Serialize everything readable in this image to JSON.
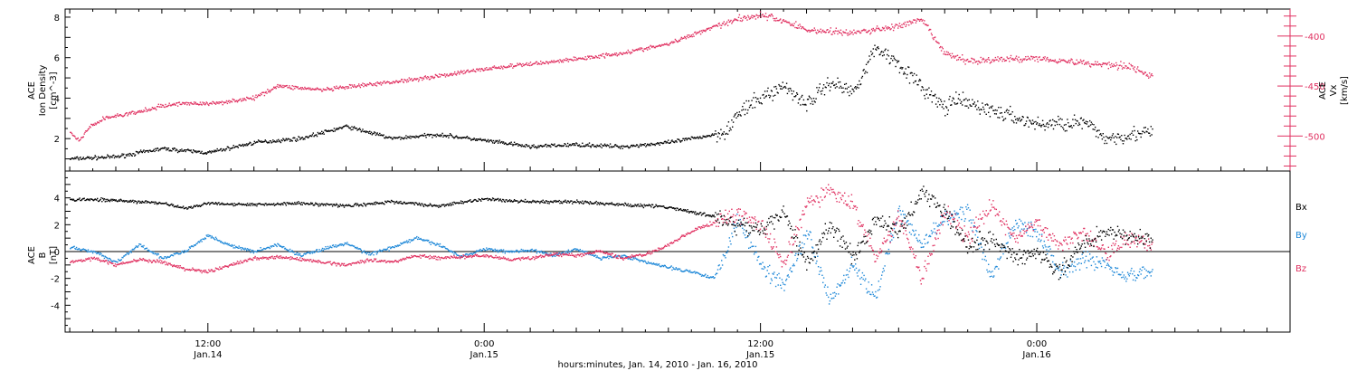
{
  "figure": {
    "xlabel": "hours:minutes, Jan. 14, 2010 - Jan. 16, 2010",
    "time_ticks": [
      {
        "time": "2010-01-14 12:00",
        "hour": 12,
        "l1": "12:00",
        "l2": "Jan.14"
      },
      {
        "time": "2010-01-15 00:00",
        "hour": 24,
        "l1": "0:00",
        "l2": "Jan.15"
      },
      {
        "time": "2010-01-15 12:00",
        "hour": 36,
        "l1": "12:00",
        "l2": "Jan.15"
      },
      {
        "time": "2010-01-16 00:00",
        "hour": 48,
        "l1": "0:00",
        "l2": "Jan.16"
      }
    ],
    "x_range_hours": [
      5.8,
      59.0
    ],
    "data_end_hour": 53.0
  },
  "chart_data": [
    {
      "type": "scatter",
      "panel": "top",
      "ylabel_lines": [
        "ACE",
        "Ion Density"
      ],
      "yunit": "[cm^-3]",
      "y2label_lines": [
        "ACE",
        "Vx"
      ],
      "y2unit": "[km/s]",
      "ylim": [
        0.4,
        8.4
      ],
      "yticks": [
        2,
        4,
        6,
        8
      ],
      "y2lim": [
        -535,
        -373
      ],
      "y2ticks": [
        -400,
        -450,
        -500
      ],
      "grid": false,
      "series": [
        {
          "axis": "left",
          "color": "#000000",
          "x": [
            6.0,
            8,
            10,
            12,
            14,
            16,
            18,
            20,
            22,
            24,
            26,
            28,
            30,
            32,
            34,
            34.5,
            35,
            36,
            37,
            38,
            39,
            40,
            41,
            42,
            43,
            44,
            44.5,
            46,
            48,
            50,
            51,
            52,
            53
          ],
          "y": [
            1.0,
            1.1,
            1.5,
            1.3,
            1.8,
            2.0,
            2.6,
            2.0,
            2.2,
            1.9,
            1.6,
            1.7,
            1.6,
            1.8,
            2.2,
            2.4,
            3.2,
            4.0,
            4.6,
            3.7,
            4.8,
            4.3,
            6.5,
            5.7,
            4.5,
            3.5,
            3.9,
            3.4,
            2.7,
            2.8,
            2.0,
            2.2,
            2.3
          ]
        },
        {
          "axis": "right",
          "color": "#e03060",
          "x": [
            6.0,
            6.4,
            6.8,
            7.5,
            9,
            10,
            11,
            12,
            14,
            15,
            17,
            20,
            22,
            24,
            26,
            28,
            30,
            32,
            34,
            35,
            36,
            37,
            38,
            40,
            42,
            43,
            44,
            45,
            48,
            50,
            52,
            53
          ],
          "y": [
            -497,
            -505,
            -492,
            -482,
            -476,
            -470,
            -467,
            -468,
            -462,
            -450,
            -454,
            -446,
            -440,
            -433,
            -428,
            -423,
            -417,
            -408,
            -390,
            -383,
            -379,
            -385,
            -394,
            -397,
            -390,
            -384,
            -418,
            -425,
            -422,
            -427,
            -430,
            -441
          ]
        }
      ]
    },
    {
      "type": "scatter",
      "panel": "bottom",
      "ylabel_lines": [
        "ACE",
        "B"
      ],
      "yunit": "[nT]",
      "ylim": [
        -6.0,
        6.0
      ],
      "yticks": [
        4,
        2,
        0,
        -2,
        -4
      ],
      "zero_line": true,
      "grid": false,
      "legend": "right",
      "series": [
        {
          "name": "Bx",
          "color": "#000000",
          "x": [
            6.0,
            8,
            10,
            11,
            12,
            14,
            16,
            18,
            20,
            22,
            24,
            26,
            28,
            30,
            32,
            34,
            35,
            36,
            37,
            38,
            39,
            40,
            41,
            42,
            43,
            44,
            45,
            46,
            47,
            48,
            49,
            50,
            51,
            52,
            53
          ],
          "y": [
            3.9,
            3.8,
            3.6,
            3.2,
            3.6,
            3.5,
            3.6,
            3.4,
            3.7,
            3.4,
            3.9,
            3.7,
            3.7,
            3.5,
            3.3,
            2.6,
            2.0,
            1.5,
            3.0,
            -1.0,
            2.0,
            -0.5,
            2.5,
            1.5,
            4.5,
            3.0,
            0.5,
            1.0,
            -0.5,
            0.0,
            -1.5,
            0.5,
            1.5,
            1.2,
            0.8
          ]
        },
        {
          "name": "By",
          "color": "#1e88d8",
          "x": [
            6.0,
            7,
            8,
            9,
            10,
            11,
            12,
            13,
            14,
            15,
            16,
            17,
            18,
            19,
            20,
            21,
            22,
            23,
            24,
            25,
            26,
            27,
            28,
            29,
            30,
            31,
            32,
            33,
            34,
            35,
            36,
            37,
            38,
            39,
            40,
            41,
            42,
            43,
            44,
            45,
            46,
            47,
            48,
            49,
            50,
            51,
            52,
            53
          ],
          "y": [
            0.3,
            0.0,
            -0.8,
            0.5,
            -0.5,
            0.0,
            1.2,
            0.4,
            0.0,
            0.5,
            -0.3,
            0.2,
            0.6,
            -0.2,
            0.3,
            1.0,
            0.5,
            -0.4,
            0.2,
            0.0,
            0.1,
            -0.3,
            0.2,
            -0.5,
            -0.3,
            -0.8,
            -1.2,
            -1.5,
            -2.0,
            2.5,
            -1.0,
            -2.5,
            1.5,
            -3.5,
            -1.0,
            -3.5,
            3.0,
            0.5,
            2.5,
            3.0,
            -2.0,
            2.0,
            1.5,
            -1.5,
            -0.5,
            -1.0,
            -1.8,
            -1.5
          ]
        },
        {
          "name": "Bz",
          "color": "#e03060",
          "x": [
            6.0,
            7,
            8,
            9,
            10,
            11,
            12,
            13,
            14,
            15,
            16,
            17,
            18,
            19,
            20,
            21,
            22,
            23,
            24,
            25,
            26,
            27,
            28,
            29,
            30,
            31,
            32,
            33,
            34,
            35,
            36,
            37,
            38,
            39,
            40,
            41,
            42,
            43,
            44,
            45,
            46,
            47,
            48,
            49,
            50,
            51,
            52,
            53
          ],
          "y": [
            -0.8,
            -0.5,
            -1.0,
            -0.6,
            -0.8,
            -1.3,
            -1.5,
            -1.0,
            -0.5,
            -0.4,
            -0.6,
            -0.8,
            -1.0,
            -0.6,
            -0.8,
            -0.3,
            -0.5,
            -0.4,
            -0.3,
            -0.6,
            -0.5,
            -0.2,
            -0.3,
            0.0,
            -0.5,
            -0.2,
            0.5,
            1.5,
            2.2,
            2.8,
            2.0,
            -1.0,
            3.5,
            4.5,
            3.5,
            -0.5,
            2.5,
            -2.0,
            3.0,
            1.0,
            3.5,
            1.0,
            2.0,
            0.5,
            1.5,
            0.0,
            1.0,
            0.5
          ]
        }
      ]
    }
  ]
}
